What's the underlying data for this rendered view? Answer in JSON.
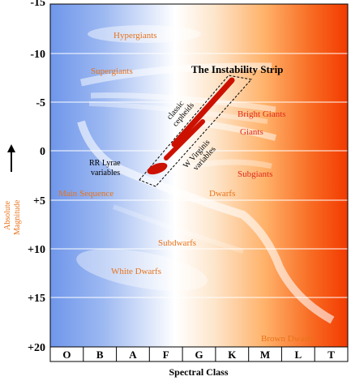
{
  "colors": {
    "blue_end": "#6f96ea",
    "white_mid": "#ffffff",
    "orange_mid": "#ffc080",
    "red_end": "#f23a00",
    "label_orange": "#e8731a",
    "label_red": "#e02a1a",
    "strip_red": "#cc1100",
    "border": "#000000"
  },
  "y_axis": {
    "ticks": [
      "-15",
      "-10",
      "-5",
      "0",
      "+5",
      "+10",
      "+15",
      "+20"
    ],
    "label_line1": "Absolute",
    "label_line2": "Magnitude"
  },
  "x_axis": {
    "classes": [
      "O",
      "B",
      "A",
      "F",
      "G",
      "K",
      "M",
      "L",
      "T"
    ],
    "label": "Spectral Class"
  },
  "regions": {
    "hypergiants": "Hypergiants",
    "supergiants": "Supergiants",
    "bright_giants": "Bright Giants",
    "giants": "Giants",
    "subgiants": "Subgiants",
    "main_sequence": "Main Sequence",
    "dwarfs": "Dwarfs",
    "subdwarfs": "Subdwarfs",
    "white_dwarfs": "White Dwarfs",
    "brown_dwarfs": "Brown Dwarfs"
  },
  "instability": {
    "title": "The Instability Strip",
    "classic_line1": "classic",
    "classic_line2": "cepheids",
    "wvir_line1": "W Virginis",
    "wvir_line2": "variables",
    "rr_line1": "RR Lyrae",
    "rr_line2": "variables"
  }
}
